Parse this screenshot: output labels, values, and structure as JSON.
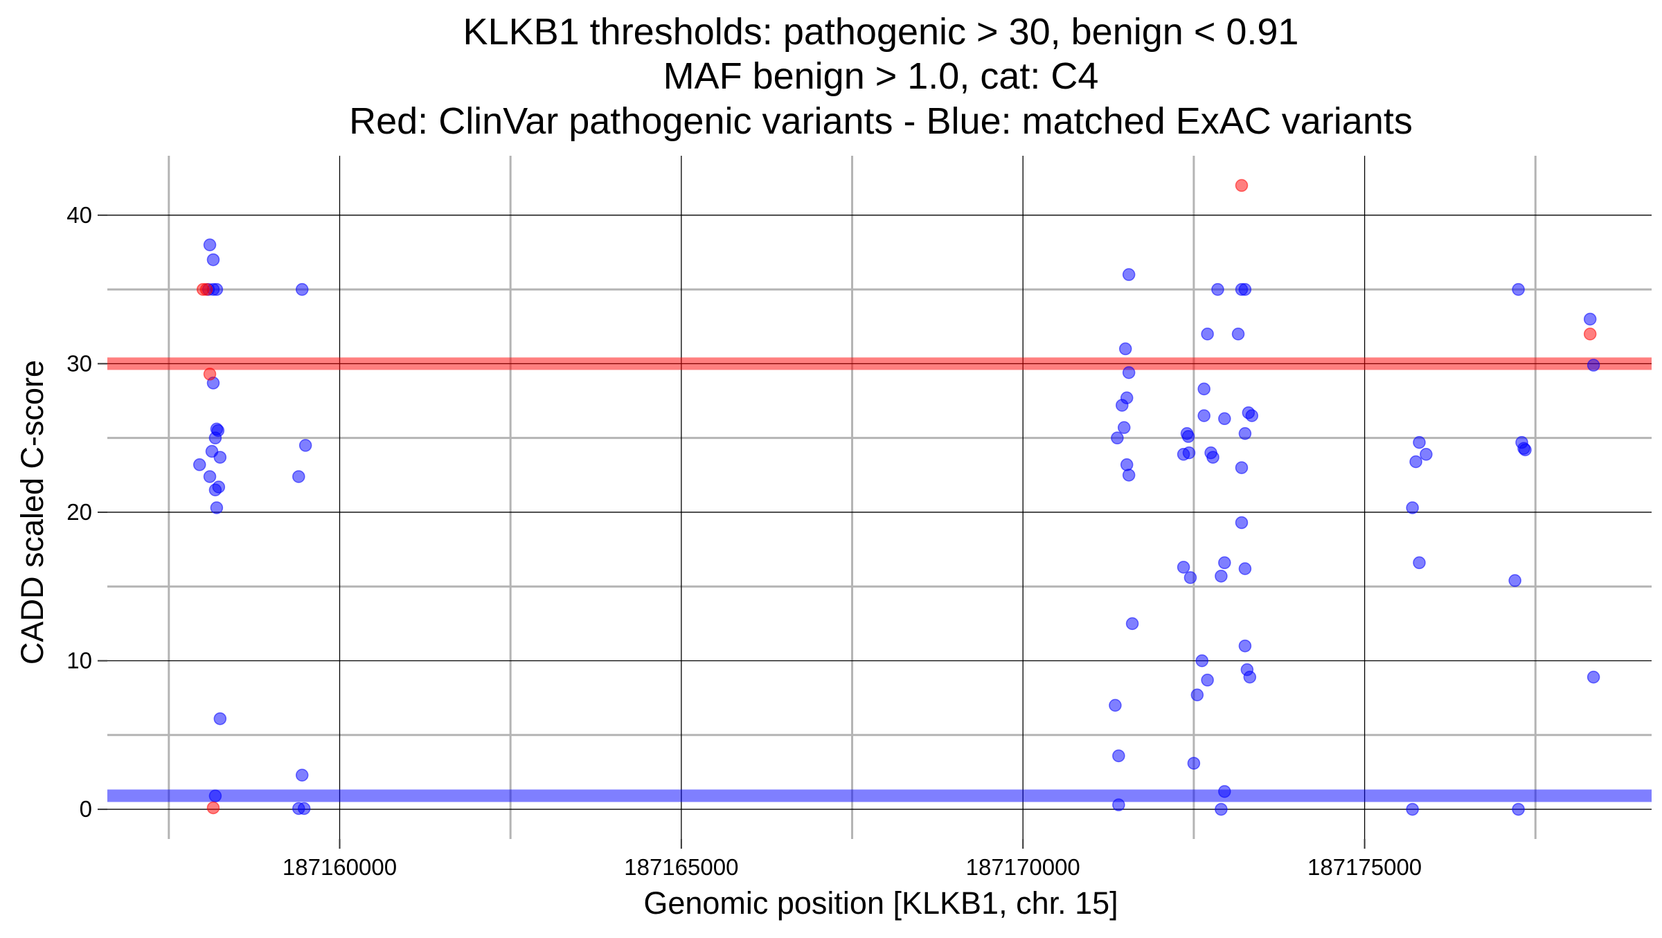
{
  "chart_data": {
    "type": "scatter",
    "title_lines": [
      "KLKB1 thresholds: pathogenic > 30, benign < 0.91",
      "MAF benign > 1.0, cat: C4",
      "Red: ClinVar pathogenic variants - Blue: matched ExAC variants"
    ],
    "xlabel": "Genomic position [KLKB1, chr. 15]",
    "ylabel": "CADD scaled C-score",
    "xlim": [
      187156600,
      187179200
    ],
    "ylim": [
      -2,
      44
    ],
    "x_major_ticks": [
      187160000,
      187165000,
      187170000,
      187175000
    ],
    "x_minor_ticks": [
      187157500,
      187162500,
      187167500,
      187172500,
      187177500
    ],
    "y_major_ticks": [
      0,
      10,
      20,
      30,
      40
    ],
    "y_minor_ticks": [
      5,
      15,
      25,
      35
    ],
    "x_tick_labels": [
      "187160000",
      "187165000",
      "187170000",
      "187175000"
    ],
    "y_tick_labels": [
      "0",
      "10",
      "20",
      "30",
      "40"
    ],
    "grid": true,
    "thresholds": [
      {
        "kind": "pathogenic",
        "value": 30,
        "color": "#ff0000"
      },
      {
        "kind": "benign",
        "value": 0.91,
        "color": "#0000ff"
      }
    ],
    "colors": {
      "pathogenic": "#ff0000",
      "benign": "#0000ff"
    },
    "series": [
      {
        "color": "#ff0000",
        "points": [
          [
            187158000,
            35
          ],
          [
            187158050,
            35
          ],
          [
            187158100,
            29.3
          ],
          [
            187158150,
            0.1
          ],
          [
            187173200,
            42
          ],
          [
            187178300,
            32
          ]
        ]
      },
      {
        "color": "#0000ff",
        "points": [
          [
            187158100,
            38
          ],
          [
            187158150,
            37
          ],
          [
            187158080,
            35
          ],
          [
            187158150,
            35
          ],
          [
            187158200,
            35
          ],
          [
            187158150,
            28.7
          ],
          [
            187158200,
            25.6
          ],
          [
            187158220,
            25.5
          ],
          [
            187158180,
            25
          ],
          [
            187158130,
            24.1
          ],
          [
            187158250,
            23.7
          ],
          [
            187157950,
            23.2
          ],
          [
            187158100,
            22.4
          ],
          [
            187158230,
            21.7
          ],
          [
            187158180,
            21.5
          ],
          [
            187158200,
            20.3
          ],
          [
            187158250,
            6.1
          ],
          [
            187158180,
            0.9
          ],
          [
            187159450,
            35
          ],
          [
            187159500,
            24.5
          ],
          [
            187159400,
            22.4
          ],
          [
            187159450,
            2.3
          ],
          [
            187159400,
            0.05
          ],
          [
            187159480,
            0.05
          ],
          [
            187171550,
            36
          ],
          [
            187171500,
            31
          ],
          [
            187171550,
            29.4
          ],
          [
            187171520,
            27.7
          ],
          [
            187171450,
            27.2
          ],
          [
            187171480,
            25.7
          ],
          [
            187171380,
            25
          ],
          [
            187171520,
            23.2
          ],
          [
            187171550,
            22.5
          ],
          [
            187171600,
            12.5
          ],
          [
            187171350,
            7
          ],
          [
            187171400,
            3.6
          ],
          [
            187171400,
            0.3
          ],
          [
            187172400,
            25.3
          ],
          [
            187172420,
            25.1
          ],
          [
            187172350,
            23.9
          ],
          [
            187172430,
            24
          ],
          [
            187172350,
            16.3
          ],
          [
            187172450,
            15.6
          ],
          [
            187172500,
            3.1
          ],
          [
            187172850,
            35
          ],
          [
            187172700,
            32
          ],
          [
            187172650,
            28.3
          ],
          [
            187172650,
            26.5
          ],
          [
            187172750,
            24
          ],
          [
            187172780,
            23.7
          ],
          [
            187172950,
            26.3
          ],
          [
            187172950,
            16.6
          ],
          [
            187172900,
            15.7
          ],
          [
            187172620,
            10
          ],
          [
            187172700,
            8.7
          ],
          [
            187172550,
            7.7
          ],
          [
            187172950,
            1.2
          ],
          [
            187172900,
            0
          ],
          [
            187173200,
            35
          ],
          [
            187173250,
            35
          ],
          [
            187173150,
            32
          ],
          [
            187173300,
            26.7
          ],
          [
            187173350,
            26.5
          ],
          [
            187173250,
            25.3
          ],
          [
            187173200,
            23
          ],
          [
            187173200,
            19.3
          ],
          [
            187173250,
            16.2
          ],
          [
            187173250,
            11
          ],
          [
            187173280,
            9.4
          ],
          [
            187173320,
            8.9
          ],
          [
            187175800,
            24.7
          ],
          [
            187175900,
            23.9
          ],
          [
            187175750,
            23.4
          ],
          [
            187175700,
            20.3
          ],
          [
            187175800,
            16.6
          ],
          [
            187175700,
            0
          ],
          [
            187177250,
            35
          ],
          [
            187177300,
            24.7
          ],
          [
            187177330,
            24.3
          ],
          [
            187177350,
            24.2
          ],
          [
            187177200,
            15.4
          ],
          [
            187177250,
            0
          ],
          [
            187178300,
            33
          ],
          [
            187178350,
            29.9
          ],
          [
            187178350,
            8.9
          ]
        ]
      }
    ]
  }
}
